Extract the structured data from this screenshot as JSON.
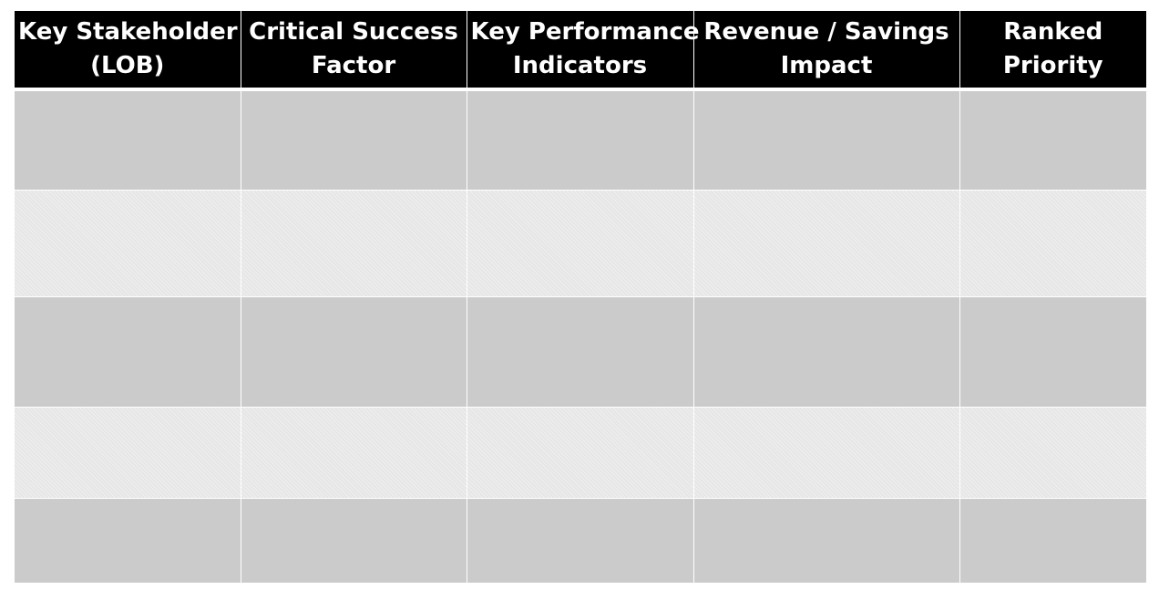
{
  "table": {
    "headers": [
      "Key Stakeholder\n(LOB)",
      "Critical Success\nFactor",
      "Key Performance\nIndicators",
      "Revenue / Savings\nImpact",
      "Ranked\nPriority"
    ],
    "rows": [
      [
        "",
        "",
        "",
        "",
        ""
      ],
      [
        "",
        "",
        "",
        "",
        ""
      ],
      [
        "",
        "",
        "",
        "",
        ""
      ],
      [
        "",
        "",
        "",
        "",
        ""
      ],
      [
        "",
        "",
        "",
        "",
        ""
      ]
    ]
  },
  "colors": {
    "header_bg": "#000000",
    "header_text": "#ffffff",
    "row_dark": "#cbcbcb",
    "row_light": "#e6e6e6"
  }
}
